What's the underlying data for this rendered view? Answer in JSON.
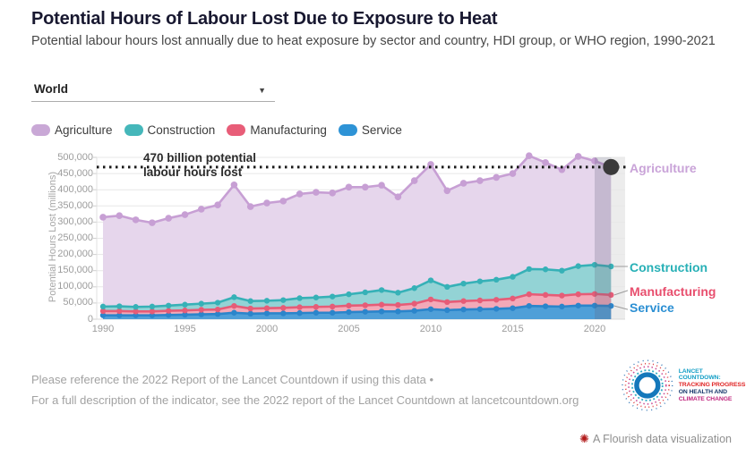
{
  "header": {
    "title": "Potential Hours of Labour Lost Due to Exposure to Heat",
    "subtitle": "Potential labour hours lost annually due to heat exposure by sector and country, HDI group, or WHO region, 1990-2021"
  },
  "controls": {
    "region_selector_value": "World"
  },
  "icons": {
    "dropdown_caret": "▼",
    "flourish_burst": "✺"
  },
  "legend": {
    "items": [
      {
        "label": "Agriculture",
        "color": "#c9a8d6"
      },
      {
        "label": "Construction",
        "color": "#45b7ba"
      },
      {
        "label": "Manufacturing",
        "color": "#e85d78"
      },
      {
        "label": "Service",
        "color": "#2e93d6"
      }
    ]
  },
  "annotation": {
    "line1": "470 billion potential",
    "line2": "labour hours lost"
  },
  "chart_data": {
    "type": "area",
    "stacked": true,
    "title": "Potential Hours of Labour Lost Due to Exposure to Heat",
    "xlabel": "",
    "ylabel": "Potential Hours Lost (millions)",
    "ylim": [
      0,
      500000
    ],
    "grid": true,
    "legend_position": "top",
    "x": [
      1990,
      1991,
      1992,
      1993,
      1994,
      1995,
      1996,
      1997,
      1998,
      1999,
      2000,
      2001,
      2002,
      2003,
      2004,
      2005,
      2006,
      2007,
      2008,
      2009,
      2010,
      2011,
      2012,
      2013,
      2014,
      2015,
      2016,
      2017,
      2018,
      2019,
      2020,
      2021
    ],
    "xticks": [
      1990,
      1995,
      2000,
      2005,
      2010,
      2015,
      2020
    ],
    "yticks": [
      "0",
      "50,000",
      "100,000",
      "150,000",
      "200,000",
      "250,000",
      "300,000",
      "350,000",
      "400,000",
      "450,000",
      "500,000"
    ],
    "series": [
      {
        "name": "Service",
        "line_color": "#2b85cb",
        "fill_color": "#4f9fd8",
        "label_color": "#2b8fd3",
        "values": [
          12000,
          12000,
          12000,
          12000,
          13000,
          14000,
          15000,
          16000,
          20000,
          17000,
          18000,
          18000,
          19000,
          20000,
          20000,
          22000,
          23000,
          24000,
          24000,
          26000,
          31000,
          28000,
          30000,
          31000,
          32000,
          34000,
          41000,
          40000,
          39000,
          42000,
          42000,
          41000
        ]
      },
      {
        "name": "Manufacturing",
        "line_color": "#e65c77",
        "fill_color": "#f3a9b8",
        "label_color": "#e84f6e",
        "values": [
          13000,
          13000,
          12000,
          12000,
          13000,
          13000,
          14000,
          14000,
          21000,
          16000,
          16000,
          17000,
          18000,
          18000,
          19000,
          20000,
          20000,
          21000,
          20000,
          22000,
          30000,
          25000,
          26000,
          27000,
          28000,
          30000,
          36000,
          35000,
          34000,
          35000,
          36000,
          34000
        ]
      },
      {
        "name": "Construction",
        "line_color": "#36b1b7",
        "fill_color": "#93d3d5",
        "label_color": "#27b0b6",
        "values": [
          14000,
          15000,
          14000,
          15000,
          16000,
          18000,
          19000,
          21000,
          27000,
          23000,
          23000,
          24000,
          28000,
          29000,
          31000,
          35000,
          40000,
          45000,
          38000,
          48000,
          59000,
          47000,
          54000,
          59000,
          62000,
          67000,
          78000,
          79000,
          77000,
          87000,
          90000,
          88000
        ]
      },
      {
        "name": "Agriculture",
        "line_color": "#c79fd4",
        "fill_color": "#e6d6ec",
        "label_color": "#c9a3d8",
        "values": [
          276000,
          280000,
          269000,
          259000,
          270000,
          278000,
          292000,
          302000,
          347000,
          292000,
          302000,
          306000,
          322000,
          325000,
          320000,
          331000,
          325000,
          324000,
          296000,
          332000,
          358000,
          297000,
          310000,
          311000,
          316000,
          319000,
          350000,
          330000,
          312000,
          339000,
          321000,
          307000
        ]
      }
    ],
    "reference_line": {
      "value": 470000,
      "label": "470 billion potential labour hours lost",
      "color": "#1a1a1a"
    },
    "highlighted_year": 2021
  },
  "footer": {
    "line1": "Please reference the 2022 Report of the Lancet Countdown if using this data •",
    "line2": "For a full description of the indicator, see the 2022 report of the Lancet Countdown at lancetcountdown.org"
  },
  "logo": {
    "lines": [
      {
        "text": "LANCET COUNTDOWN:",
        "color": "#149fc6"
      },
      {
        "text": "TRACKING PROGRESS",
        "color": "#e02424"
      },
      {
        "text": "ON HEALTH AND",
        "color": "#16366b"
      },
      {
        "text": "CLIMATE CHANGE",
        "color": "#c0267e"
      }
    ]
  },
  "attribution": {
    "text": "A Flourish data visualization"
  }
}
